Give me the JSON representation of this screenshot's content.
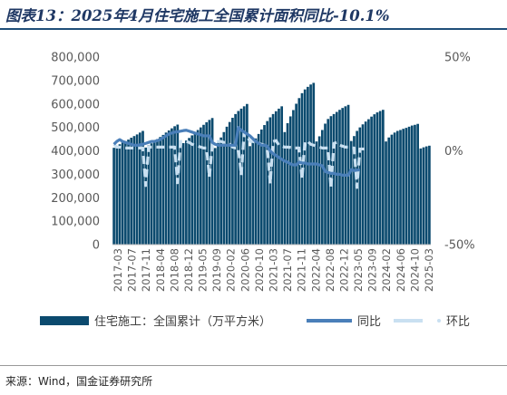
{
  "page": {
    "title": "图表13：2025年4月住宅施工全国累计面积同比-10.1%",
    "source": "来源：Wind，国金证券研究所"
  },
  "colors": {
    "bar": "#0b4a6e",
    "yoy": "#4a7fb9",
    "mom": "#c9e0f1",
    "title": "#1f3864"
  },
  "chart_data": {
    "type": "bar+line",
    "title": "",
    "left_axis": {
      "min": 0,
      "max": 800000,
      "step": 100000,
      "tick_labels": [
        "0",
        "100,000",
        "200,000",
        "300,000",
        "400,000",
        "500,000",
        "600,000",
        "700,000",
        "800,000"
      ]
    },
    "right_axis": {
      "min": -50,
      "max": 50,
      "unit": "%",
      "tick_labels": [
        "-50%",
        "0%",
        "50%"
      ]
    },
    "x_tick_labels": [
      "2017-03",
      "2017-07",
      "2017-11",
      "2018-04",
      "2018-08",
      "2018-12",
      "2019-05",
      "2019-09",
      "2020-02",
      "2020-06",
      "2020-10",
      "2021-03",
      "2021-07",
      "2021-11",
      "2022-04",
      "2022-08",
      "2022-12",
      "2023-05",
      "2023-09",
      "2024-02",
      "2024-06",
      "2024-10",
      "2025-03"
    ],
    "legend": [
      "住宅施工：全国累计（万平方米）",
      "同比",
      "环比"
    ],
    "grid": false,
    "series": [
      {
        "name": "住宅施工：全国累计（万平方米）",
        "type": "bar",
        "axis": "left",
        "values": [
          [
            413000,
            421000,
            428000,
            435000,
            441000,
            448000,
            456000,
            463000,
            470000,
            478000,
            485000
          ],
          [
            414000,
            423000,
            432000,
            441000,
            450000,
            459000,
            468000,
            478000,
            487000,
            496000,
            505000,
            512000
          ],
          [
            423000,
            433000,
            444000,
            455000,
            466000,
            477000,
            489000,
            500000,
            511000,
            522000,
            532000,
            540000
          ],
          [
            412000,
            434000,
            457000,
            480000,
            503000,
            523000,
            541000,
            557000,
            570000,
            580000,
            590000,
            600000
          ],
          [
            420000,
            435000,
            453000,
            472000,
            491000,
            510000,
            527000,
            543000,
            557000,
            569000,
            580000,
            590000
          ],
          [
            480000,
            518000,
            547000,
            574000,
            601000,
            625000,
            646000,
            662000,
            673000,
            683000,
            690000
          ],
          [
            440000,
            462000,
            489000,
            516000,
            536000,
            548000,
            557000,
            566000,
            575000,
            583000,
            590000,
            596000
          ],
          [
            442000,
            463000,
            485000,
            500000,
            513000,
            525000,
            535000,
            546000,
            556000,
            564000,
            570000,
            575000
          ],
          [
            440000,
            457000,
            469000,
            478000,
            485000,
            489000,
            494000,
            498000,
            503000,
            508000,
            511000,
            515000
          ],
          [
            410000,
            415000,
            419000,
            422000
          ]
        ],
        "note": "Monthly cumulative values grouped by calendar year 2017-2025, read from the chart (each year's first value is Jan-Feb combined)"
      },
      {
        "name": "同比",
        "type": "line",
        "axis": "right",
        "values": [
          3.5,
          5.0,
          6.0,
          5.0,
          4.5,
          4.0,
          3.5,
          3.0,
          3.0,
          3.2,
          3.5,
          4.0,
          4.5,
          5.0,
          5.0,
          5.5,
          6.0,
          7.0,
          8.0,
          9.0,
          9.5,
          10.0,
          10.2,
          10.5,
          10.8,
          11.0,
          10.5,
          10.0,
          9.5,
          9.0,
          8.5,
          8.0,
          8.0,
          8.0,
          4.5,
          3.5,
          3.0,
          3.0,
          3.0,
          3.0,
          3.0,
          3.0,
          3.0,
          12.5,
          11.0,
          10.0,
          9.0,
          8.0,
          6.5,
          5.0,
          4.0,
          3.0,
          3.0,
          2.5,
          0.0,
          -1.5,
          -2.5,
          -3.5,
          -4.5,
          -5.5,
          -6.0,
          -7.0,
          -7.5,
          -7.5,
          -6.0,
          -6.5,
          -6.5,
          -7.0,
          -7.0,
          -7.0,
          -7.0,
          -7.5,
          -8.0,
          -11.0,
          -11.5,
          -12.0,
          -12.0,
          -12.5,
          -12.5,
          -13.0,
          -13.0,
          -13.0,
          -10.0,
          -10.5,
          -10.3,
          -10.1
        ]
      },
      {
        "name": "环比",
        "type": "line",
        "axis": "right",
        "values": [
          3.5,
          2.0,
          2.0,
          1.5,
          1.5,
          1.5,
          1.5,
          1.5,
          1.5,
          1.5,
          1.5,
          -18.5,
          2.0,
          2.0,
          2.0,
          2.0,
          2.0,
          2.0,
          2.0,
          2.0,
          2.0,
          2.0,
          -17.0,
          5.0,
          5.0,
          5.0,
          4.5,
          3.5,
          3.0,
          2.5,
          2.0,
          1.5,
          1.5,
          -14.0,
          3.5,
          4.5,
          5.0,
          5.0,
          4.5,
          4.5,
          3.5,
          2.0,
          1.5,
          1.5,
          -13.0,
          10.0,
          8.0,
          5.0,
          5.0,
          4.5,
          4.0,
          3.5,
          3.0,
          2.5,
          -17.5,
          5.0,
          5.5,
          3.0,
          2.5,
          2.0,
          2.0,
          1.8,
          1.5,
          1.5,
          1.5,
          -15.0,
          5.0,
          5.0,
          3.5,
          3.0,
          2.5,
          2.0,
          1.5,
          1.5,
          1.5,
          -20.0,
          4.0,
          4.5,
          3.0,
          2.5,
          2.0,
          2.0,
          1.5,
          1.5,
          -19.5,
          1.0,
          1.0,
          1.0
        ]
      }
    ]
  }
}
